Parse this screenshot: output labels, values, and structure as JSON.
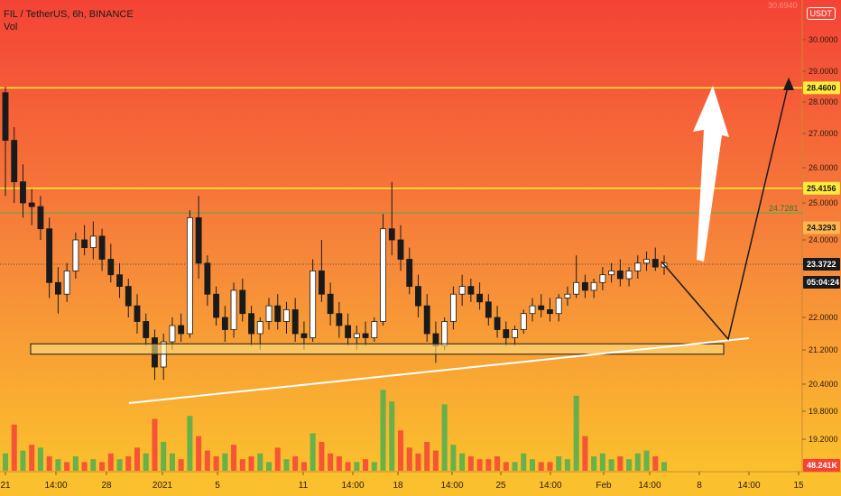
{
  "header": {
    "title": "FIL / TetherUS, 6h, BINANCE",
    "indicator": "Vol"
  },
  "currency_badge": "USDT",
  "colors": {
    "bg_top": "#f44336",
    "bg_bottom": "#fbc02d",
    "up_candle": "#ffffff",
    "down_candle": "#1a1a1a",
    "vol_up": "#4caf50",
    "vol_down": "#f44336",
    "level_line": "#ffeb3b",
    "green_level": "#4caf50",
    "support_box": "#ffe082",
    "trend_line": "#ffffff",
    "projection": "#1a1a1a",
    "arrow": "#ffffff"
  },
  "chart_data": {
    "type": "candlestick",
    "symbol": "FIL / TetherUS",
    "interval": "6h",
    "exchange": "BINANCE",
    "price_axis": {
      "ticks": [
        "30.0000",
        "29.0000",
        "28.0000",
        "27.0000",
        "26.0000",
        "25.0000",
        "24.0000",
        "22.0000",
        "21.2000",
        "20.4000",
        "19.8000",
        "19.2000"
      ]
    },
    "time_axis": {
      "ticks": [
        "21",
        "14:00",
        "28",
        "2021",
        "5",
        "11",
        "14:00",
        "18",
        "14:00",
        "25",
        "14:00",
        "Feb",
        "14:00",
        "8",
        "14:00",
        "15"
      ]
    },
    "price_labels": [
      {
        "value": "28.4600",
        "price": 28.46,
        "style": "level"
      },
      {
        "value": "25.4156",
        "price": 25.4156,
        "style": "level"
      },
      {
        "value": "24.3293",
        "price": 24.3293,
        "style": "green"
      },
      {
        "value": "23.3722",
        "price": 23.3722,
        "style": "current"
      },
      {
        "value": "05:04:24",
        "style": "timer"
      },
      {
        "value": "48.241K",
        "style": "volume"
      }
    ],
    "horizontal_levels": [
      28.46,
      25.4156,
      24.728
    ],
    "green_level_label": "24.7281",
    "top_faint_label": "30.6940",
    "support_zone": {
      "low": 21.1,
      "high": 21.35
    },
    "ohlc": [
      [
        28.3,
        28.5,
        25.2,
        26.8
      ],
      [
        26.8,
        27.2,
        25.0,
        25.6
      ],
      [
        25.6,
        26.1,
        24.6,
        25.0
      ],
      [
        25.0,
        25.4,
        24.4,
        24.9
      ],
      [
        24.9,
        25.2,
        24.0,
        24.3
      ],
      [
        24.3,
        24.6,
        22.5,
        22.9
      ],
      [
        22.9,
        23.3,
        22.1,
        22.6
      ],
      [
        22.6,
        23.4,
        22.4,
        23.2
      ],
      [
        23.2,
        24.2,
        23.0,
        24.0
      ],
      [
        24.0,
        24.4,
        23.6,
        23.8
      ],
      [
        23.8,
        24.5,
        23.5,
        24.1
      ],
      [
        24.1,
        24.3,
        23.2,
        23.5
      ],
      [
        23.5,
        23.9,
        22.9,
        23.1
      ],
      [
        23.1,
        23.4,
        22.5,
        22.8
      ],
      [
        22.8,
        23.0,
        22.0,
        22.3
      ],
      [
        22.3,
        22.6,
        21.6,
        21.9
      ],
      [
        21.9,
        22.1,
        21.3,
        21.5
      ],
      [
        21.5,
        21.7,
        20.5,
        20.8
      ],
      [
        20.8,
        21.6,
        20.5,
        21.4
      ],
      [
        21.4,
        22.0,
        21.2,
        21.8
      ],
      [
        21.8,
        22.1,
        21.4,
        21.6
      ],
      [
        21.6,
        24.8,
        21.5,
        24.6
      ],
      [
        24.6,
        25.2,
        23.0,
        23.4
      ],
      [
        23.4,
        23.6,
        22.3,
        22.6
      ],
      [
        22.6,
        22.8,
        21.8,
        22.0
      ],
      [
        22.0,
        22.3,
        21.4,
        21.7
      ],
      [
        21.7,
        22.9,
        21.5,
        22.7
      ],
      [
        22.7,
        23.0,
        21.9,
        22.1
      ],
      [
        22.1,
        22.3,
        21.3,
        21.6
      ],
      [
        21.6,
        22.0,
        21.2,
        21.9
      ],
      [
        21.9,
        22.5,
        21.7,
        22.3
      ],
      [
        22.3,
        22.6,
        21.7,
        21.9
      ],
      [
        21.9,
        22.4,
        21.6,
        22.2
      ],
      [
        22.2,
        22.5,
        21.4,
        21.6
      ],
      [
        21.6,
        21.9,
        21.2,
        21.5
      ],
      [
        21.5,
        23.5,
        21.4,
        23.2
      ],
      [
        23.2,
        24.0,
        22.4,
        22.6
      ],
      [
        22.6,
        22.9,
        21.8,
        22.1
      ],
      [
        22.1,
        22.4,
        21.5,
        21.8
      ],
      [
        21.8,
        22.1,
        21.3,
        21.5
      ],
      [
        21.5,
        21.8,
        21.2,
        21.6
      ],
      [
        21.6,
        21.9,
        21.3,
        21.5
      ],
      [
        21.5,
        22.0,
        21.4,
        21.9
      ],
      [
        21.9,
        24.7,
        21.8,
        24.3
      ],
      [
        24.3,
        25.6,
        23.6,
        24.0
      ],
      [
        24.0,
        24.4,
        23.2,
        23.5
      ],
      [
        23.5,
        23.8,
        22.6,
        22.8
      ],
      [
        22.8,
        23.1,
        22.0,
        22.3
      ],
      [
        22.3,
        22.6,
        21.4,
        21.6
      ],
      [
        21.6,
        21.9,
        20.9,
        21.3
      ],
      [
        21.3,
        22.0,
        21.2,
        21.9
      ],
      [
        21.9,
        22.8,
        21.7,
        22.6
      ],
      [
        22.6,
        23.1,
        22.3,
        22.8
      ],
      [
        22.8,
        23.0,
        22.4,
        22.6
      ],
      [
        22.6,
        22.9,
        22.2,
        22.4
      ],
      [
        22.4,
        22.6,
        21.8,
        22.0
      ],
      [
        22.0,
        22.3,
        21.5,
        21.7
      ],
      [
        21.7,
        21.9,
        21.3,
        21.5
      ],
      [
        21.5,
        21.8,
        21.3,
        21.7
      ],
      [
        21.7,
        22.2,
        21.6,
        22.1
      ],
      [
        22.1,
        22.5,
        21.9,
        22.3
      ],
      [
        22.3,
        22.6,
        22.0,
        22.2
      ],
      [
        22.2,
        22.5,
        21.9,
        22.1
      ],
      [
        22.1,
        22.6,
        21.9,
        22.5
      ],
      [
        22.5,
        22.8,
        22.3,
        22.6
      ],
      [
        22.6,
        23.6,
        22.5,
        22.9
      ],
      [
        22.9,
        23.1,
        22.5,
        22.7
      ],
      [
        22.7,
        23.0,
        22.5,
        22.9
      ],
      [
        22.9,
        23.3,
        22.7,
        23.1
      ],
      [
        23.1,
        23.4,
        22.9,
        23.2
      ],
      [
        23.2,
        23.5,
        22.8,
        23.0
      ],
      [
        23.0,
        23.3,
        22.8,
        23.2
      ],
      [
        23.2,
        23.6,
        23.0,
        23.4
      ],
      [
        23.4,
        23.7,
        23.2,
        23.5
      ],
      [
        23.5,
        23.8,
        23.2,
        23.3
      ],
      [
        23.3,
        23.6,
        23.1,
        23.4
      ]
    ],
    "volume": [
      [
        0.6,
        1
      ],
      [
        1.6,
        0
      ],
      [
        0.7,
        1
      ],
      [
        0.9,
        0
      ],
      [
        0.8,
        1
      ],
      [
        0.5,
        0
      ],
      [
        0.4,
        1
      ],
      [
        0.3,
        0
      ],
      [
        0.5,
        1
      ],
      [
        0.3,
        0
      ],
      [
        0.4,
        1
      ],
      [
        0.3,
        0
      ],
      [
        0.6,
        0
      ],
      [
        0.4,
        1
      ],
      [
        0.5,
        0
      ],
      [
        0.8,
        0
      ],
      [
        0.6,
        1
      ],
      [
        1.8,
        0
      ],
      [
        1.0,
        1
      ],
      [
        0.6,
        1
      ],
      [
        0.4,
        0
      ],
      [
        1.9,
        1
      ],
      [
        1.2,
        0
      ],
      [
        0.7,
        0
      ],
      [
        0.5,
        0
      ],
      [
        0.6,
        1
      ],
      [
        0.9,
        0
      ],
      [
        0.4,
        0
      ],
      [
        0.5,
        0
      ],
      [
        0.6,
        1
      ],
      [
        0.3,
        1
      ],
      [
        0.8,
        0
      ],
      [
        0.4,
        1
      ],
      [
        0.5,
        0
      ],
      [
        0.3,
        0
      ],
      [
        1.3,
        1
      ],
      [
        1.0,
        0
      ],
      [
        0.6,
        0
      ],
      [
        0.5,
        0
      ],
      [
        0.3,
        0
      ],
      [
        0.3,
        1
      ],
      [
        0.4,
        0
      ],
      [
        0.3,
        1
      ],
      [
        2.8,
        1
      ],
      [
        2.4,
        1
      ],
      [
        1.4,
        0
      ],
      [
        0.8,
        0
      ],
      [
        0.6,
        0
      ],
      [
        1.0,
        0
      ],
      [
        0.7,
        0
      ],
      [
        2.3,
        1
      ],
      [
        0.9,
        1
      ],
      [
        0.6,
        1
      ],
      [
        0.5,
        0
      ],
      [
        0.4,
        0
      ],
      [
        0.4,
        0
      ],
      [
        0.5,
        0
      ],
      [
        0.3,
        0
      ],
      [
        0.3,
        1
      ],
      [
        0.6,
        1
      ],
      [
        0.4,
        1
      ],
      [
        0.3,
        0
      ],
      [
        0.3,
        0
      ],
      [
        0.5,
        1
      ],
      [
        0.4,
        1
      ],
      [
        2.6,
        1
      ],
      [
        1.2,
        0
      ],
      [
        0.5,
        1
      ],
      [
        0.6,
        1
      ],
      [
        0.4,
        1
      ],
      [
        0.5,
        0
      ],
      [
        0.4,
        1
      ],
      [
        0.6,
        1
      ],
      [
        0.7,
        1
      ],
      [
        0.5,
        0
      ],
      [
        0.3,
        1
      ]
    ]
  }
}
